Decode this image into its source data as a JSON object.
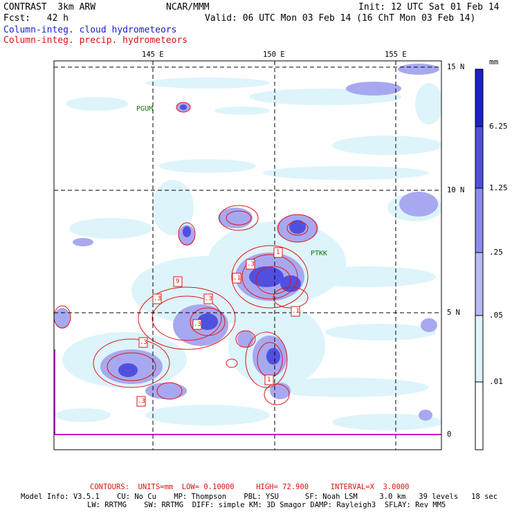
{
  "header": {
    "model": "CONTRAST  3km ARW",
    "org": "NCAR/MMM",
    "init": "Init: 12 UTC Sat 01 Feb 14",
    "fcst": "Fcst:   42 h",
    "valid": "Valid: 06 UTC Mon 03 Feb 14 (16 ChT Mon 03 Feb 14)",
    "field1": "Column-integ. cloud hydrometeors",
    "field2": "Column-integ. precip. hydrometeors"
  },
  "map": {
    "lon_labels": [
      "145 E",
      "150 E",
      "155 E"
    ],
    "lat_labels": [
      "15 N",
      "10 N",
      "5 N",
      "0"
    ],
    "stations": [
      "PGUM",
      "PTKK"
    ],
    "contour_labels": [
      ".1",
      ".3",
      "1",
      "9",
      ".3",
      ".3",
      ".1",
      ".3",
      ".3",
      ".3",
      "1",
      ".3",
      "1",
      "9",
      ".1"
    ],
    "colors": {
      "cloud_light": "#ddf4fb",
      "cloud_mid": "#a8a8f0",
      "cloud_dark": "#6060e6",
      "cloud_max": "#1e1ecc",
      "precip": "#e01414",
      "zero_line": "#d400d4"
    }
  },
  "colorbar": {
    "units": "mm",
    "levels": [
      "6.25",
      "1.25",
      ".25",
      ".05",
      ".01"
    ],
    "colors": [
      "#1e1ecc",
      "#5050e0",
      "#8c8cec",
      "#b8b8f2",
      "#ddf4fb",
      "#ffffff"
    ]
  },
  "footer": {
    "contours": "CONTOURS:  UNITS=mm  LOW= 0.10000     HIGH= 72.900     INTERVAL=X  3.0000",
    "model_line1": "Model Info: V3.5.1    CU: No Cu    MP: Thompson    PBL: YSU      SF: Noah LSM     3.0 km   39 levels   18 sec",
    "model_line2": "LW: RRTMG    SW: RRTMG  DIFF: simple KM: 3D Smagor DAMP: Rayleigh3  SFLAY: Rev MM5"
  }
}
